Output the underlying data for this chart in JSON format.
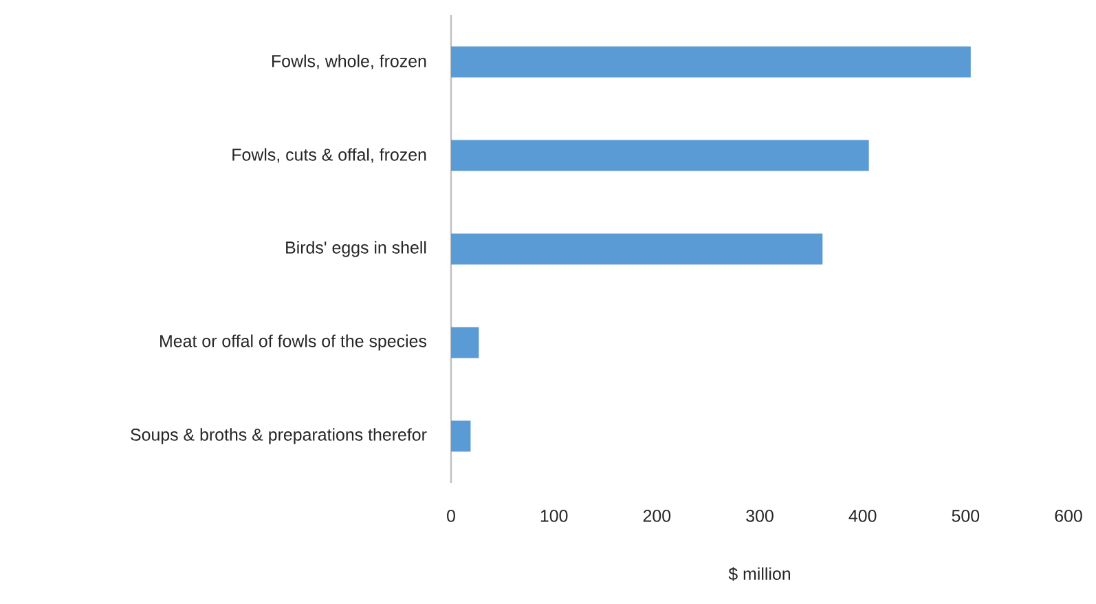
{
  "chart_data": {
    "type": "bar",
    "orientation": "horizontal",
    "xlabel": "$ million",
    "color": "#5b9bd5",
    "categories": [
      "Fowls, whole, frozen",
      "Fowls, cuts & offal, frozen",
      "Birds' eggs in shell",
      "Meat or offal of fowls of the species",
      "Soups & broths & preparations therefor"
    ],
    "values": [
      505,
      406,
      361,
      27,
      19
    ],
    "xlim": [
      0,
      600
    ],
    "xticks": [
      0,
      100,
      200,
      300,
      400,
      500,
      600
    ]
  }
}
